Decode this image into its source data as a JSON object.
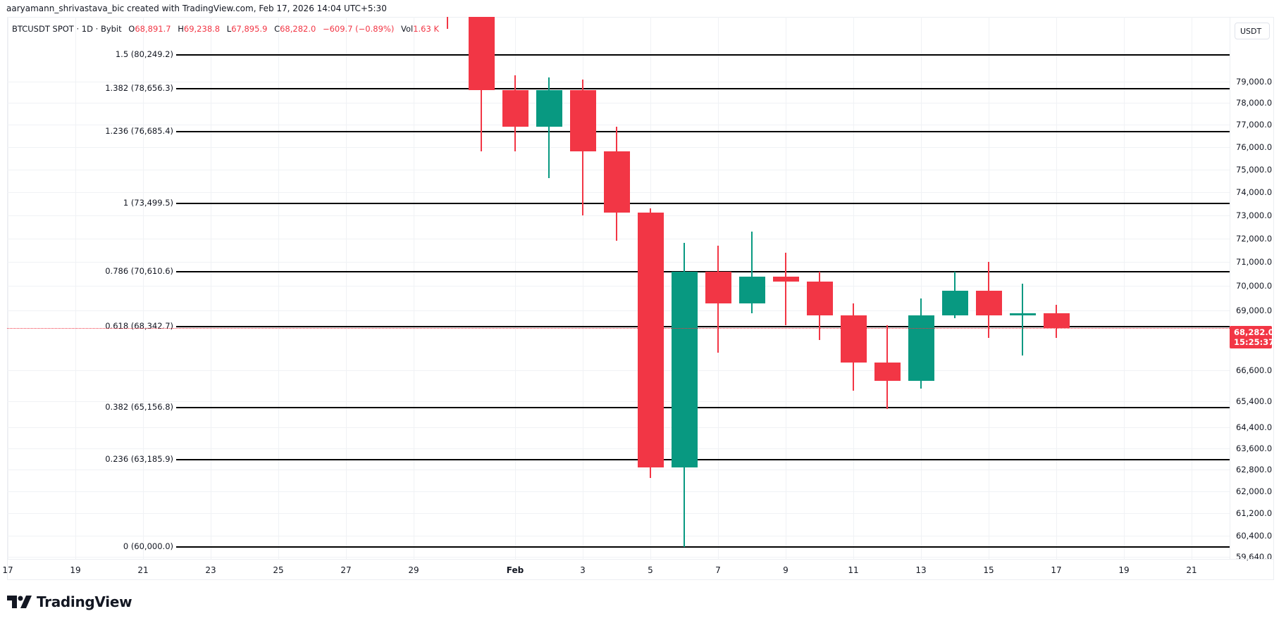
{
  "header": {
    "credit": "aaryamann_shrivastava_bic created with TradingView.com, Feb 17, 2026 14:04 UTC+5:30"
  },
  "legend": {
    "symbol": "BTCUSDT SPOT · 1D · Bybit",
    "open_label": "O",
    "open": "68,891.7",
    "high_label": "H",
    "high": "69,238.8",
    "low_label": "L",
    "low": "67,895.9",
    "close_label": "C",
    "close": "68,282.0",
    "change": "−609.7 (−0.89%)",
    "vol_label": "Vol",
    "vol": "1.63 K"
  },
  "axis": {
    "currency": "USDT",
    "price_badge": {
      "price": "68,282.0",
      "countdown": "15:25:37"
    }
  },
  "colors": {
    "up": "#089981",
    "down": "#f23645",
    "fib": "#000000",
    "grid": "#f0f2f5"
  },
  "logo": {
    "text": "TradingView"
  },
  "chart_data": {
    "type": "candlestick",
    "title": "BTCUSDT SPOT · 1D · Bybit",
    "xlabel": "",
    "ylabel": "USDT",
    "scale": "log",
    "ylim": [
      59640,
      80800
    ],
    "grid": true,
    "x_tick_labels": [
      "17",
      "19",
      "21",
      "23",
      "25",
      "27",
      "29",
      "Feb",
      "3",
      "5",
      "7",
      "9",
      "11",
      "13",
      "15",
      "17",
      "19",
      "21"
    ],
    "y_tick_labels": [
      "79,000.0",
      "78,000.0",
      "77,000.0",
      "76,000.0",
      "75,000.0",
      "74,000.0",
      "73,000.0",
      "72,000.0",
      "71,000.0",
      "70,000.0",
      "69,000.0",
      "66,600.0",
      "65,400.0",
      "64,400.0",
      "63,600.0",
      "62,800.0",
      "62,000.0",
      "61,200.0",
      "60,400.0",
      "59,640.0"
    ],
    "fib_levels": [
      {
        "ratio": "1.5",
        "price": 80249.2,
        "label": "1.5 (80,249.2)"
      },
      {
        "ratio": "1.382",
        "price": 78656.3,
        "label": "1.382 (78,656.3)"
      },
      {
        "ratio": "1.236",
        "price": 76685.4,
        "label": "1.236 (76,685.4)"
      },
      {
        "ratio": "1",
        "price": 73499.5,
        "label": "1 (73,499.5)"
      },
      {
        "ratio": "0.786",
        "price": 70610.6,
        "label": "0.786 (70,610.6)"
      },
      {
        "ratio": "0.618",
        "price": 68342.7,
        "label": "0.618 (68,342.7)"
      },
      {
        "ratio": "0.382",
        "price": 65156.8,
        "label": "0.382 (65,156.8)"
      },
      {
        "ratio": "0.236",
        "price": 63185.9,
        "label": "0.236 (63,185.9)"
      },
      {
        "ratio": "0",
        "price": 60000.0,
        "label": "0 (60,000.0)"
      }
    ],
    "candles": [
      {
        "date": "Jan 30",
        "open": null,
        "high": null,
        "low": 81500,
        "close": null,
        "partial": true
      },
      {
        "date": "Jan 31",
        "open": 84500,
        "high": 84500,
        "low": 75800,
        "close": 78600
      },
      {
        "date": "Feb 1",
        "open": 78600,
        "high": 79300,
        "low": 75800,
        "close": 76900
      },
      {
        "date": "Feb 2",
        "open": 76900,
        "high": 79200,
        "low": 74600,
        "close": 78600
      },
      {
        "date": "Feb 3",
        "open": 78600,
        "high": 79100,
        "low": 73000,
        "close": 75800
      },
      {
        "date": "Feb 4",
        "open": 75800,
        "high": 76900,
        "low": 71900,
        "close": 73100
      },
      {
        "date": "Feb 5",
        "open": 73100,
        "high": 73300,
        "low": 62500,
        "close": 62900
      },
      {
        "date": "Feb 6",
        "open": 62900,
        "high": 71800,
        "low": 60000,
        "close": 70600
      },
      {
        "date": "Feb 7",
        "open": 70600,
        "high": 71700,
        "low": 67300,
        "close": 69300
      },
      {
        "date": "Feb 8",
        "open": 69300,
        "high": 72300,
        "low": 68900,
        "close": 70400
      },
      {
        "date": "Feb 9",
        "open": 70400,
        "high": 71400,
        "low": 68400,
        "close": 70200
      },
      {
        "date": "Feb 10",
        "open": 70200,
        "high": 70600,
        "low": 67800,
        "close": 68800
      },
      {
        "date": "Feb 11",
        "open": 68800,
        "high": 69300,
        "low": 65800,
        "close": 66900
      },
      {
        "date": "Feb 12",
        "open": 66900,
        "high": 68400,
        "low": 65100,
        "close": 66200
      },
      {
        "date": "Feb 13",
        "open": 66200,
        "high": 69500,
        "low": 65900,
        "close": 68800
      },
      {
        "date": "Feb 14",
        "open": 68800,
        "high": 70600,
        "low": 68700,
        "close": 69800
      },
      {
        "date": "Feb 15",
        "open": 69800,
        "high": 71000,
        "low": 67900,
        "close": 68800
      },
      {
        "date": "Feb 16",
        "open": 68800,
        "high": 70100,
        "low": 67200,
        "close": 68900
      },
      {
        "date": "Feb 17",
        "open": 68891.7,
        "high": 69238.8,
        "low": 67895.9,
        "close": 68282.0
      }
    ],
    "last_price": 68282.0
  }
}
